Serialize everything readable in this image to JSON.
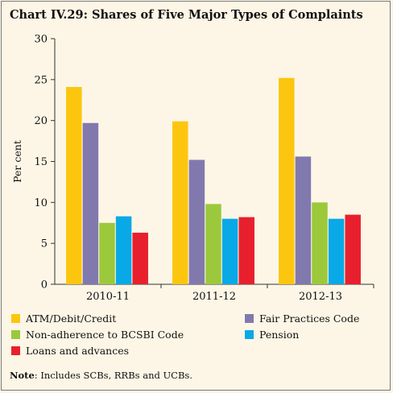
{
  "title": "Chart IV.29: Shares of Five Major Types of Complaints",
  "note_label": "Note",
  "note_text": ": Includes SCBs, RRBs and UCBs.",
  "chart_data": {
    "type": "bar",
    "ylabel": "Per cent",
    "xlabel": "",
    "ylim": [
      0,
      30
    ],
    "yticks": [
      0,
      5,
      10,
      15,
      20,
      25,
      30
    ],
    "categories": [
      "2010-11",
      "2011-12",
      "2012-13"
    ],
    "legend_position": "bottom",
    "grid": false,
    "series": [
      {
        "name": "ATM/Debit/Credit",
        "color": "#fcc60f",
        "values": [
          24.1,
          19.9,
          25.2
        ]
      },
      {
        "name": "Fair Practices Code",
        "color": "#8179ae",
        "values": [
          19.7,
          15.2,
          15.6
        ]
      },
      {
        "name": "Non-adherence to BCSBI Code",
        "color": "#9cc83c",
        "values": [
          7.5,
          9.8,
          10.0
        ]
      },
      {
        "name": "Pension",
        "color": "#08a9e6",
        "values": [
          8.3,
          8.0,
          8.0
        ]
      },
      {
        "name": "Loans and advances",
        "color": "#e8202d",
        "values": [
          6.3,
          8.2,
          8.5
        ]
      }
    ]
  }
}
